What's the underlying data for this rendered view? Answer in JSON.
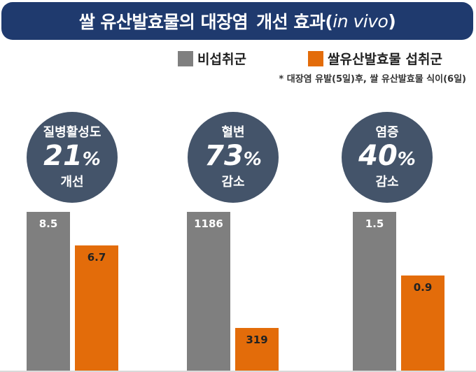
{
  "title": {
    "part1": "쌀 유산발효물의 대장염",
    "part2": "개선 효과(",
    "italic": "in vivo",
    "close": ")"
  },
  "legend": [
    {
      "label": "비섭취군",
      "color": "#7f7f7f"
    },
    {
      "label": "쌀유산발효물 섭취군",
      "color": "#e36c0a"
    }
  ],
  "note": "* 대장염 유발(5일)후, 쌀 유산발효물 식이(6일)",
  "panels": [
    {
      "top": "질병활성도",
      "percent": "21",
      "pct_sign": "%",
      "bottom": "개선"
    },
    {
      "top": "혈변",
      "percent": "73",
      "pct_sign": "%",
      "bottom": "감소"
    },
    {
      "top": "염증",
      "percent": "40",
      "pct_sign": "%",
      "bottom": "감소"
    }
  ],
  "chart_data": [
    {
      "type": "bar",
      "categories": [
        "비섭취군",
        "쌀유산발효물 섭취군"
      ],
      "values": [
        8.5,
        6.7
      ],
      "value_labels": [
        "8.5",
        "6.7"
      ],
      "colors": [
        "#7f7f7f",
        "#e36c0a"
      ]
    },
    {
      "type": "bar",
      "categories": [
        "비섭취군",
        "쌀유산발효물 섭취군"
      ],
      "values": [
        1186,
        319
      ],
      "value_labels": [
        "1186",
        "319"
      ],
      "colors": [
        "#7f7f7f",
        "#e36c0a"
      ]
    },
    {
      "type": "bar",
      "categories": [
        "비섭취군",
        "쌀유산발효물 섭취군"
      ],
      "values": [
        1.5,
        0.9
      ],
      "value_labels": [
        "1.5",
        "0.9"
      ],
      "colors": [
        "#7f7f7f",
        "#e36c0a"
      ]
    }
  ]
}
